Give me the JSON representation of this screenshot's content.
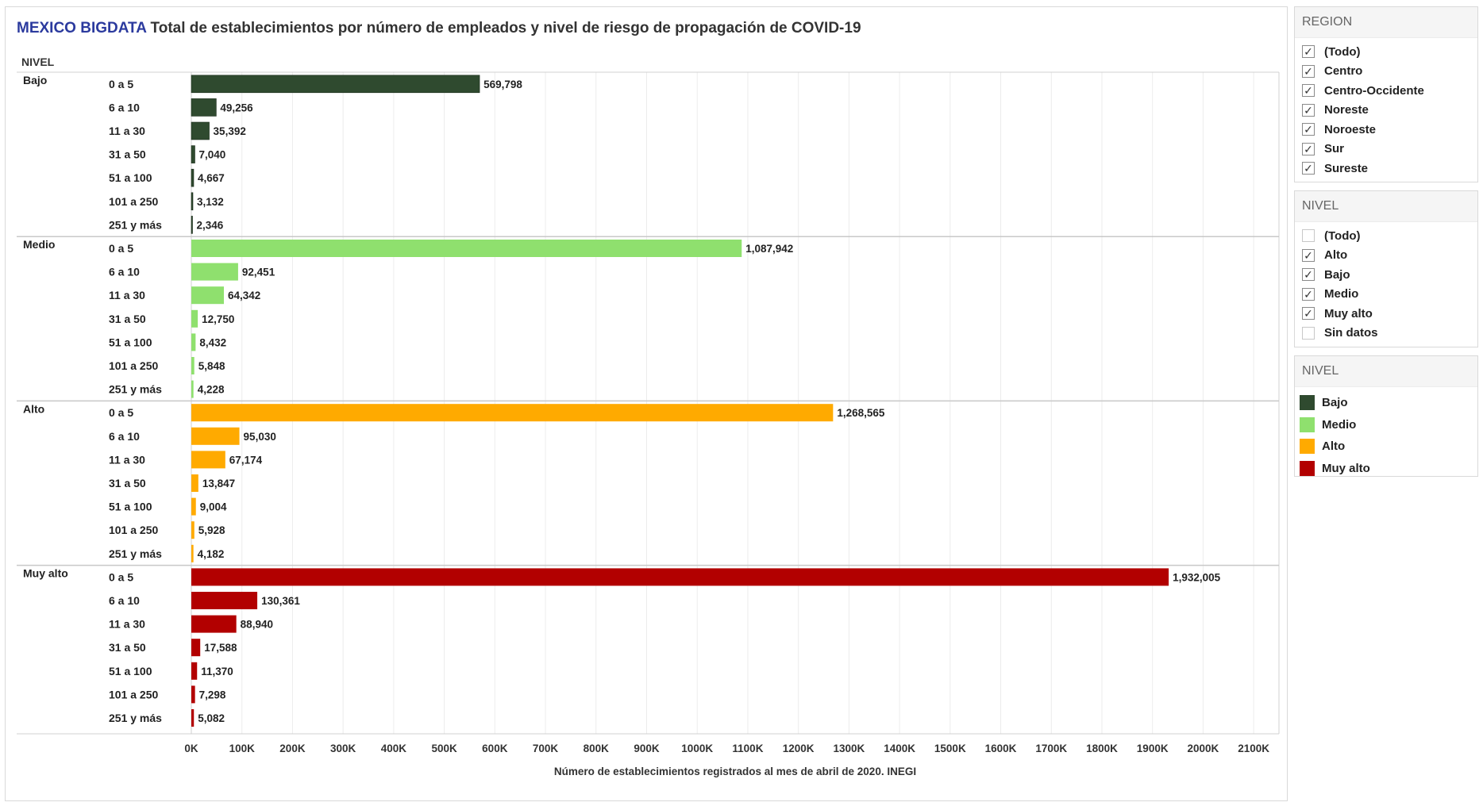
{
  "title": {
    "brand": "MEXICO BIGDATA",
    "text": "Total de establecimientos por número de empleados y nivel de riesgo de propagación de COVID-19"
  },
  "chart_data": {
    "type": "bar",
    "orientation": "horizontal",
    "row_header": "NIVEL",
    "categories": [
      "0 a 5",
      "6 a 10",
      "11 a 30",
      "31 a 50",
      "51 a 100",
      "101 a 250",
      "251 y más"
    ],
    "groups": [
      {
        "name": "Bajo",
        "color": "#2f4a2f",
        "values": [
          569798,
          49256,
          35392,
          7040,
          4667,
          3132,
          2346
        ],
        "labels": [
          "569,798",
          "49,256",
          "35,392",
          "7,040",
          "4,667",
          "3,132",
          "2,346"
        ]
      },
      {
        "name": "Medio",
        "color": "#8fe06e",
        "values": [
          1087942,
          92451,
          64342,
          12750,
          8432,
          5848,
          4228
        ],
        "labels": [
          "1,087,942",
          "92,451",
          "64,342",
          "12,750",
          "8,432",
          "5,848",
          "4,228"
        ]
      },
      {
        "name": "Alto",
        "color": "#ffaa00",
        "values": [
          1268565,
          95030,
          67174,
          13847,
          9004,
          5928,
          4182
        ],
        "labels": [
          "1,268,565",
          "95,030",
          "67,174",
          "13,847",
          "9,004",
          "5,928",
          "4,182"
        ]
      },
      {
        "name": "Muy alto",
        "color": "#b20000",
        "values": [
          1932005,
          130361,
          88940,
          17588,
          11370,
          7298,
          5082
        ],
        "labels": [
          "1,932,005",
          "130,361",
          "88,940",
          "17,588",
          "11,370",
          "7,298",
          "5,082"
        ]
      }
    ],
    "xlim": [
      0,
      2150000
    ],
    "xticks": [
      0,
      100000,
      200000,
      300000,
      400000,
      500000,
      600000,
      700000,
      800000,
      900000,
      1000000,
      1100000,
      1200000,
      1300000,
      1400000,
      1500000,
      1600000,
      1700000,
      1800000,
      1900000,
      2000000,
      2100000
    ],
    "xtick_labels": [
      "0K",
      "100K",
      "200K",
      "300K",
      "400K",
      "500K",
      "600K",
      "700K",
      "800K",
      "900K",
      "1000K",
      "1100K",
      "1200K",
      "1300K",
      "1400K",
      "1500K",
      "1600K",
      "1700K",
      "1800K",
      "1900K",
      "2000K",
      "2100K"
    ],
    "xlabel": "Número de establecimientos registrados al mes de abril de 2020. INEGI",
    "grid": true
  },
  "region_filter": {
    "title": "REGION",
    "items": [
      {
        "label": "(Todo)",
        "checked": true
      },
      {
        "label": "Centro",
        "checked": true
      },
      {
        "label": "Centro-Occidente",
        "checked": true
      },
      {
        "label": "Noreste",
        "checked": true
      },
      {
        "label": "Noroeste",
        "checked": true
      },
      {
        "label": "Sur",
        "checked": true
      },
      {
        "label": "Sureste",
        "checked": true
      }
    ]
  },
  "nivel_filter": {
    "title": "NIVEL",
    "items": [
      {
        "label": "(Todo)",
        "checked": false
      },
      {
        "label": "Alto",
        "checked": true
      },
      {
        "label": "Bajo",
        "checked": true
      },
      {
        "label": "Medio",
        "checked": true
      },
      {
        "label": "Muy alto",
        "checked": true
      },
      {
        "label": "Sin datos",
        "checked": false
      }
    ]
  },
  "legend": {
    "title": "NIVEL",
    "items": [
      {
        "label": "Bajo",
        "color": "#2f4a2f"
      },
      {
        "label": "Medio",
        "color": "#8fe06e"
      },
      {
        "label": "Alto",
        "color": "#ffaa00"
      },
      {
        "label": "Muy alto",
        "color": "#b20000"
      }
    ]
  }
}
